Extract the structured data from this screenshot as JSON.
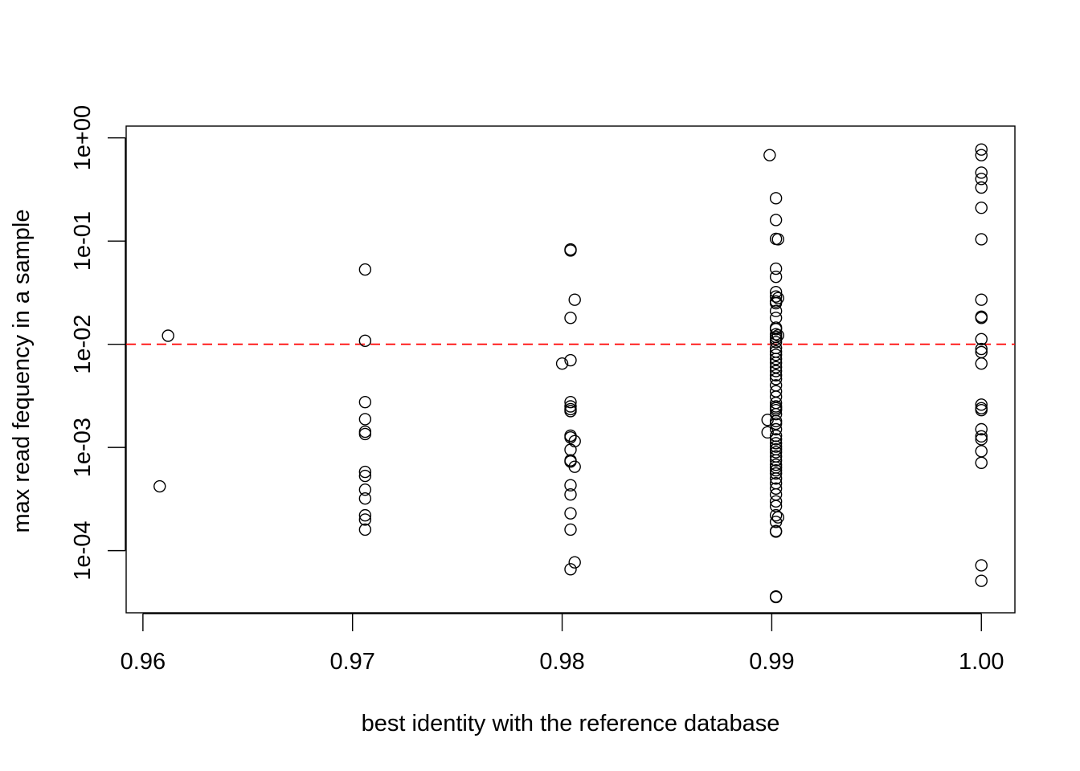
{
  "chart_data": {
    "type": "scatter",
    "title": "",
    "xlabel": "best identity with the reference database",
    "ylabel": "max read fequency in a sample",
    "xlim": [
      0.9592,
      1.0016
    ],
    "ylim": [
      2.5e-05,
      1.3
    ],
    "y_scale": "log",
    "grid": false,
    "legend": "none",
    "x_ticks": [
      0.96,
      0.97,
      0.98,
      0.99,
      1.0
    ],
    "x_tick_labels": [
      "0.96",
      "0.97",
      "0.98",
      "0.99",
      "1.00"
    ],
    "y_ticks": [
      0.0001,
      0.001,
      0.01,
      0.1,
      1
    ],
    "y_tick_labels": [
      "1e-04",
      "1e-03",
      "1e-02",
      "1e-01",
      "1e+00"
    ],
    "reference_line": {
      "axis": "y",
      "value": 0.01,
      "color": "#ff0000",
      "style": "dashed"
    },
    "marker_color": "#000000",
    "points": [
      [
        0.9612,
        0.0121
      ],
      [
        0.9608,
        0.00042
      ],
      [
        0.9706,
        0.053
      ],
      [
        0.9706,
        0.0108
      ],
      [
        0.9706,
        0.00275
      ],
      [
        0.9706,
        0.00188
      ],
      [
        0.9706,
        0.00142
      ],
      [
        0.9706,
        0.00135
      ],
      [
        0.9706,
        0.00058
      ],
      [
        0.9706,
        0.00053
      ],
      [
        0.9706,
        0.00039
      ],
      [
        0.9706,
        0.00032
      ],
      [
        0.9706,
        0.00022
      ],
      [
        0.9706,
        0.0002
      ],
      [
        0.9706,
        0.00016
      ],
      [
        0.9804,
        0.083
      ],
      [
        0.9804,
        0.081
      ],
      [
        0.9806,
        0.027
      ],
      [
        0.9804,
        0.018
      ],
      [
        0.9804,
        0.007
      ],
      [
        0.98,
        0.0065
      ],
      [
        0.9804,
        0.00275
      ],
      [
        0.9804,
        0.0025
      ],
      [
        0.9804,
        0.00235
      ],
      [
        0.9804,
        0.00225
      ],
      [
        0.9804,
        0.0013
      ],
      [
        0.9804,
        0.00125
      ],
      [
        0.9806,
        0.00115
      ],
      [
        0.9804,
        0.00095
      ],
      [
        0.9804,
        0.00075
      ],
      [
        0.9804,
        0.00073
      ],
      [
        0.9806,
        0.00065
      ],
      [
        0.9804,
        0.00043
      ],
      [
        0.9804,
        0.00035
      ],
      [
        0.9804,
        0.00023
      ],
      [
        0.9804,
        0.00016
      ],
      [
        0.9806,
        7.7e-05
      ],
      [
        0.9804,
        6.6e-05
      ],
      [
        0.9899,
        0.68
      ],
      [
        0.9902,
        0.26
      ],
      [
        0.9902,
        0.16
      ],
      [
        0.9902,
        0.105
      ],
      [
        0.9903,
        0.104
      ],
      [
        0.9902,
        0.054
      ],
      [
        0.9902,
        0.045
      ],
      [
        0.9902,
        0.032
      ],
      [
        0.9902,
        0.029
      ],
      [
        0.9903,
        0.028
      ],
      [
        0.9902,
        0.026
      ],
      [
        0.9902,
        0.025
      ],
      [
        0.9902,
        0.021
      ],
      [
        0.9902,
        0.018
      ],
      [
        0.9902,
        0.0145
      ],
      [
        0.9902,
        0.014
      ],
      [
        0.9902,
        0.0125
      ],
      [
        0.9903,
        0.0122
      ],
      [
        0.9902,
        0.0118
      ],
      [
        0.9902,
        0.0112
      ],
      [
        0.9902,
        0.0105
      ],
      [
        0.9902,
        0.0092
      ],
      [
        0.9902,
        0.0085
      ],
      [
        0.9902,
        0.0079
      ],
      [
        0.9902,
        0.0072
      ],
      [
        0.9902,
        0.0066
      ],
      [
        0.9902,
        0.006
      ],
      [
        0.9902,
        0.0055
      ],
      [
        0.9902,
        0.005
      ],
      [
        0.9902,
        0.0046
      ],
      [
        0.9902,
        0.004
      ],
      [
        0.9902,
        0.0035
      ],
      [
        0.9902,
        0.0031
      ],
      [
        0.9902,
        0.0027
      ],
      [
        0.9902,
        0.0025
      ],
      [
        0.9902,
        0.0024
      ],
      [
        0.9902,
        0.0023
      ],
      [
        0.9902,
        0.0021
      ],
      [
        0.9898,
        0.00185
      ],
      [
        0.9902,
        0.0018
      ],
      [
        0.9902,
        0.0017
      ],
      [
        0.9902,
        0.0015
      ],
      [
        0.9898,
        0.0014
      ],
      [
        0.9902,
        0.0013
      ],
      [
        0.9902,
        0.0012
      ],
      [
        0.9902,
        0.0011
      ],
      [
        0.9902,
        0.00102
      ],
      [
        0.9902,
        0.00096
      ],
      [
        0.9902,
        0.0009
      ],
      [
        0.9902,
        0.00082
      ],
      [
        0.9902,
        0.00075
      ],
      [
        0.9902,
        0.00068
      ],
      [
        0.9902,
        0.00064
      ],
      [
        0.9902,
        0.0006
      ],
      [
        0.9902,
        0.00056
      ],
      [
        0.9902,
        0.0005
      ],
      [
        0.9902,
        0.00045
      ],
      [
        0.9902,
        0.0004
      ],
      [
        0.9902,
        0.00035
      ],
      [
        0.9902,
        0.0003
      ],
      [
        0.9902,
        0.00027
      ],
      [
        0.9902,
        0.00022
      ],
      [
        0.9903,
        0.00021
      ],
      [
        0.9902,
        0.00019
      ],
      [
        0.9902,
        0.000155
      ],
      [
        0.9902,
        0.000153
      ],
      [
        0.9902,
        3.6e-05
      ],
      [
        0.9902,
        3.55e-05
      ],
      [
        1.0,
        0.77
      ],
      [
        1.0,
        0.68
      ],
      [
        1.0,
        0.46
      ],
      [
        1.0,
        0.4
      ],
      [
        1.0,
        0.33
      ],
      [
        1.0,
        0.21
      ],
      [
        1.0,
        0.104
      ],
      [
        1.0,
        0.027
      ],
      [
        1.0,
        0.0185
      ],
      [
        1.0,
        0.018
      ],
      [
        1.0,
        0.0112
      ],
      [
        1.0,
        0.009
      ],
      [
        1.0,
        0.0084
      ],
      [
        1.0,
        0.0065
      ],
      [
        1.0,
        0.0026
      ],
      [
        1.0,
        0.0024
      ],
      [
        1.0,
        0.0023
      ],
      [
        1.0,
        0.0015
      ],
      [
        1.0,
        0.00128
      ],
      [
        1.0,
        0.0012
      ],
      [
        1.0,
        0.00092
      ],
      [
        1.0,
        0.00071
      ],
      [
        1.0,
        7.2e-05
      ],
      [
        1.0,
        5.1e-05
      ]
    ]
  }
}
